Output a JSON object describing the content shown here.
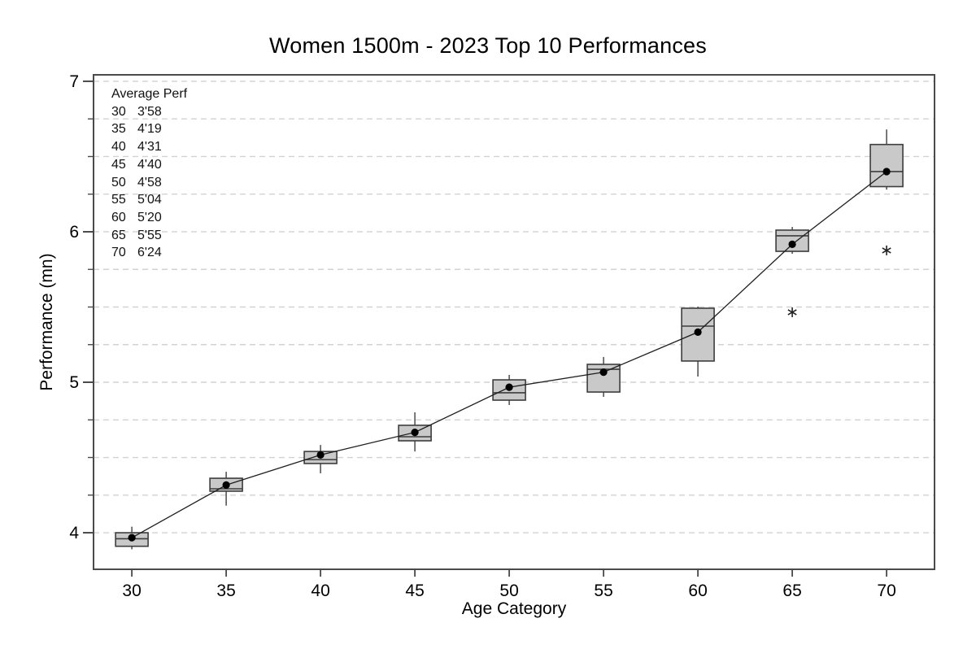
{
  "chart_data": {
    "type": "boxplot",
    "title": "Women 1500m - 2023 Top 10 Performances",
    "xlabel": "Age Category",
    "ylabel": "Performance (mn)",
    "ylim": [
      3.757,
      7.043
    ],
    "xlim": [
      27.97,
      72.54
    ],
    "y_major_ticks": [
      4,
      5,
      6,
      7
    ],
    "y_minor_step": 0.25,
    "grid": {
      "step": 0.25,
      "min": 4.0,
      "max": 7.0,
      "style": "dashed"
    },
    "categories": [
      30,
      35,
      40,
      45,
      50,
      55,
      60,
      65,
      70
    ],
    "series": [
      {
        "age": 30,
        "whisker_low": 3.89,
        "q1": 3.91,
        "median": 3.96,
        "q3": 4.0,
        "whisker_high": 4.04,
        "mean": 3.967,
        "outliers": []
      },
      {
        "age": 35,
        "whisker_low": 4.18,
        "q1": 4.276,
        "median": 4.292,
        "q3": 4.362,
        "whisker_high": 4.405,
        "mean": 4.317,
        "outliers": []
      },
      {
        "age": 40,
        "whisker_low": 4.395,
        "q1": 4.46,
        "median": 4.486,
        "q3": 4.54,
        "whisker_high": 4.583,
        "mean": 4.517,
        "outliers": []
      },
      {
        "age": 45,
        "whisker_low": 4.54,
        "q1": 4.611,
        "median": 4.638,
        "q3": 4.714,
        "whisker_high": 4.8,
        "mean": 4.667,
        "outliers": []
      },
      {
        "age": 50,
        "whisker_low": 4.849,
        "q1": 4.881,
        "median": 4.93,
        "q3": 5.016,
        "whisker_high": 5.049,
        "mean": 4.967,
        "outliers": []
      },
      {
        "age": 55,
        "whisker_low": 4.903,
        "q1": 4.935,
        "median": 5.086,
        "q3": 5.119,
        "whisker_high": 5.168,
        "mean": 5.067,
        "outliers": []
      },
      {
        "age": 60,
        "whisker_low": 5.038,
        "q1": 5.141,
        "median": 5.373,
        "q3": 5.492,
        "whisker_high": 5.503,
        "mean": 5.333,
        "outliers": []
      },
      {
        "age": 65,
        "whisker_low": 5.854,
        "q1": 5.87,
        "median": 5.973,
        "q3": 6.011,
        "whisker_high": 6.032,
        "mean": 5.917,
        "outliers": [
          5.465
        ]
      },
      {
        "age": 70,
        "whisker_low": 6.28,
        "q1": 6.3,
        "median": 6.4,
        "q3": 6.58,
        "whisker_high": 6.68,
        "mean": 6.4,
        "outliers": [
          5.876
        ]
      }
    ],
    "mean_line": true,
    "annotation": {
      "header": "Average Perf",
      "rows": [
        [
          "30",
          "3'58"
        ],
        [
          "35",
          "4'19"
        ],
        [
          "40",
          "4'31"
        ],
        [
          "45",
          "4'40"
        ],
        [
          "50",
          "4'58"
        ],
        [
          "55",
          "5'04"
        ],
        [
          "60",
          "5'20"
        ],
        [
          "65",
          "5'55"
        ],
        [
          "70",
          "6'24"
        ]
      ]
    },
    "colors": {
      "box_fill": "#c9c9c9",
      "box_stroke": "#3d3d3d",
      "whisker": "#2f2f2f",
      "mean_line": "#1f1f1f",
      "mean_marker": "#000000",
      "outlier": "#222222",
      "grid": "#d2d2d2",
      "frame": "#4a4a4a",
      "text": "#000000"
    },
    "legend": {
      "visible": false
    }
  }
}
